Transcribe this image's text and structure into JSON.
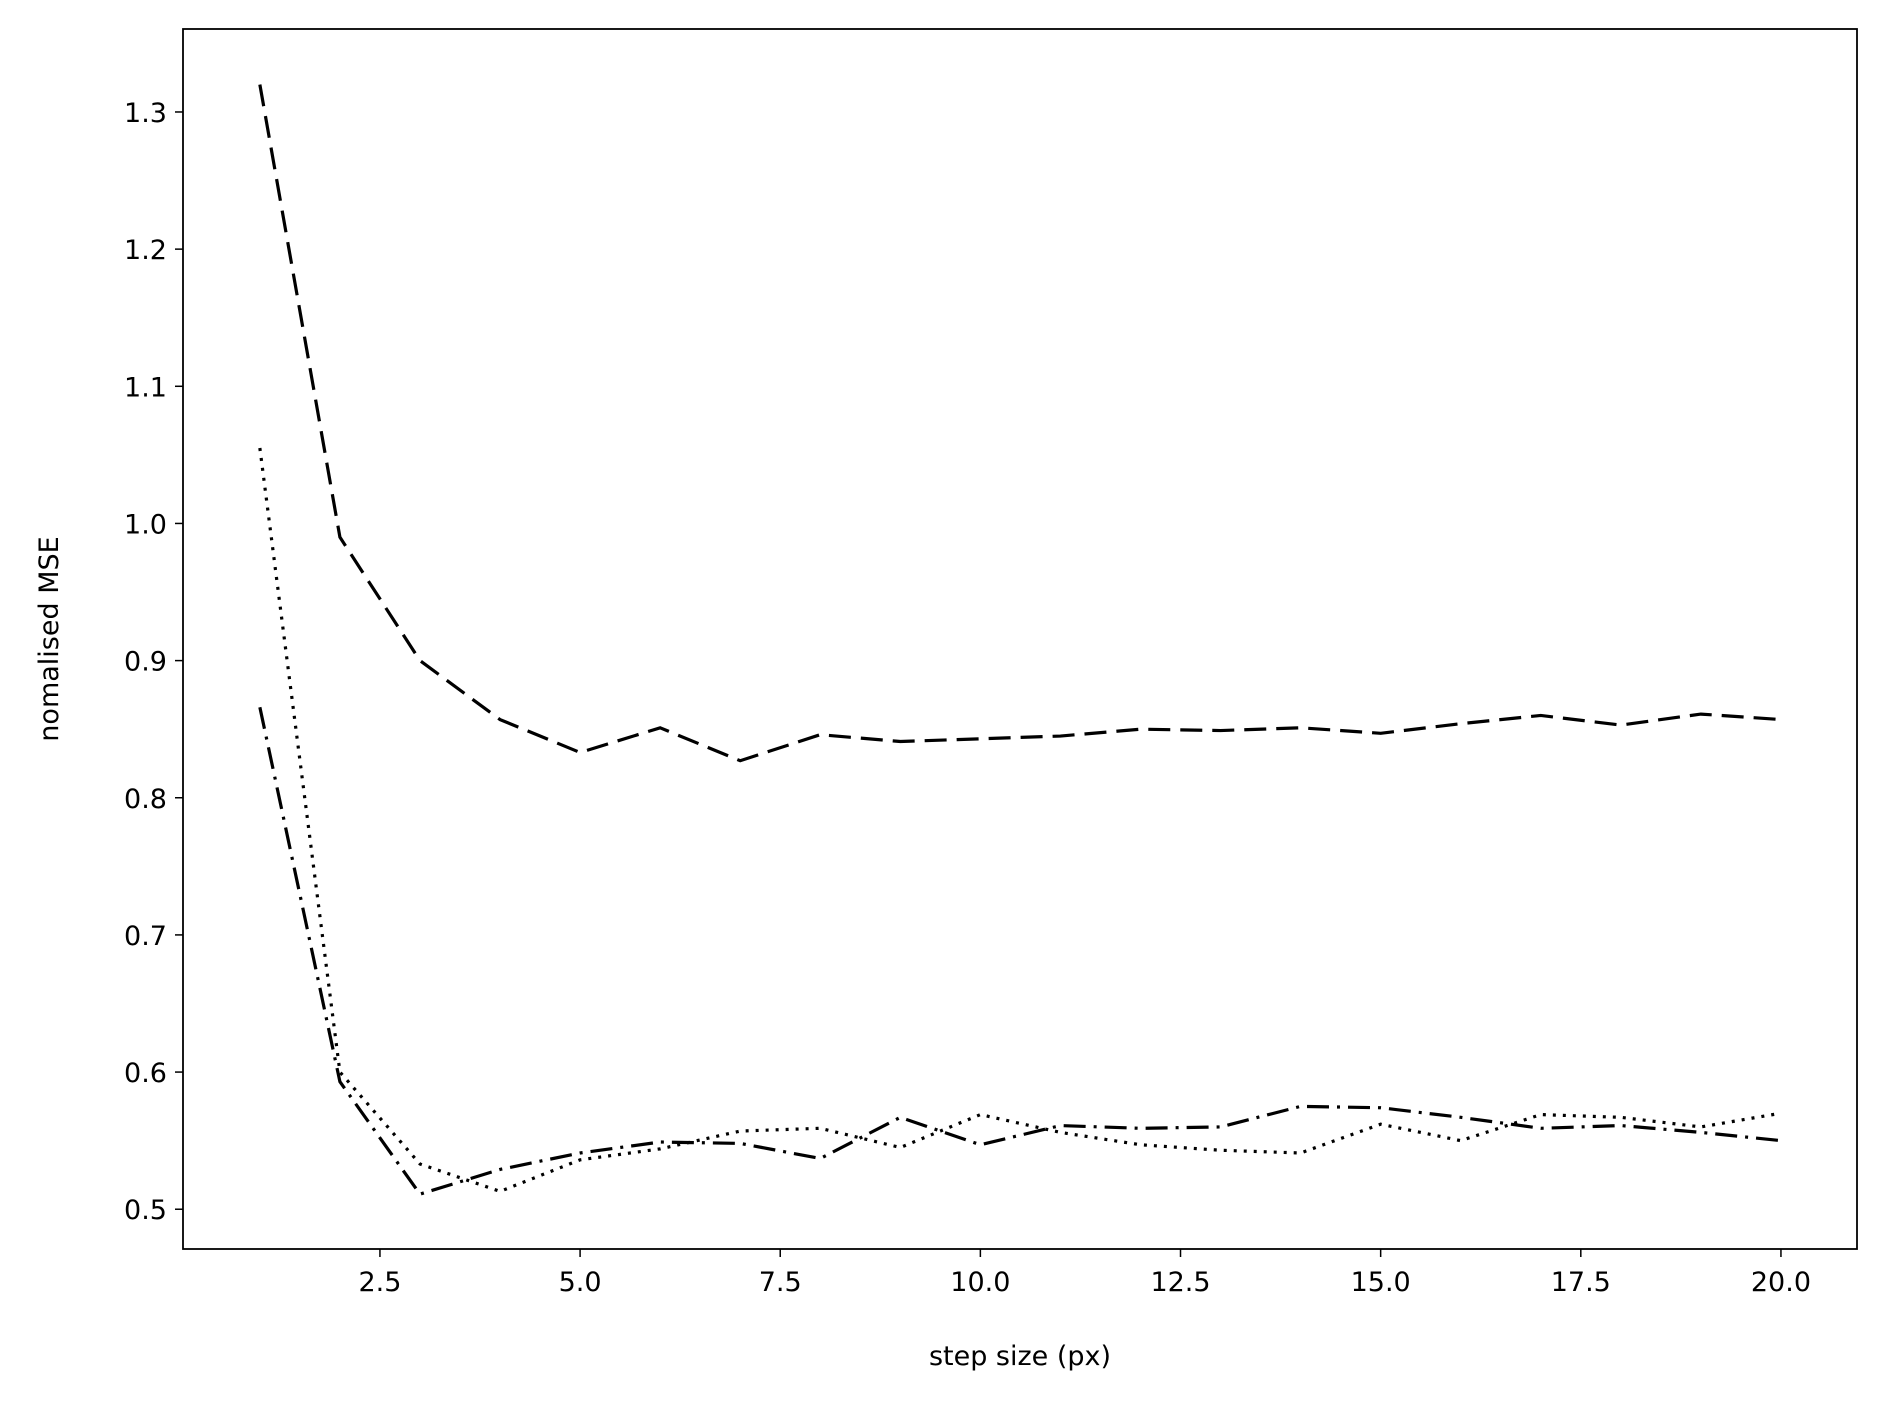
{
  "chart_data": {
    "type": "line",
    "x_label": "step size (px)",
    "y_label": "nomalised MSE",
    "x": [
      1,
      2,
      3,
      4,
      5,
      6,
      7,
      8,
      9,
      10,
      11,
      12,
      13,
      14,
      15,
      16,
      17,
      18,
      19,
      20
    ],
    "series": [
      {
        "color": "#000000",
        "linestyle": "dashed",
        "values": [
          1.32,
          0.99,
          0.9,
          0.857,
          0.833,
          0.851,
          0.827,
          0.846,
          0.841,
          0.843,
          0.845,
          0.85,
          0.849,
          0.851,
          0.847,
          0.854,
          0.86,
          0.853,
          0.861,
          0.857
        ]
      },
      {
        "color": "#000000",
        "linestyle": "dotted",
        "values": [
          1.055,
          0.6,
          0.533,
          0.513,
          0.536,
          0.544,
          0.557,
          0.559,
          0.545,
          0.569,
          0.556,
          0.547,
          0.543,
          0.541,
          0.562,
          0.55,
          0.569,
          0.567,
          0.56,
          0.57
        ]
      },
      {
        "color": "#000000",
        "linestyle": "dashdot",
        "values": [
          0.866,
          0.593,
          0.511,
          0.529,
          0.541,
          0.549,
          0.548,
          0.537,
          0.567,
          0.547,
          0.561,
          0.559,
          0.56,
          0.575,
          0.574,
          0.567,
          0.559,
          0.561,
          0.556,
          0.55
        ]
      }
    ],
    "xlim": [
      0.04,
      20.95
    ],
    "xticks": [
      2.5,
      {
        "value": 5,
        "label": "5.0"
      },
      7.5,
      {
        "value": 10,
        "label": "10.0"
      },
      12.5,
      {
        "value": 15,
        "label": "15.0"
      },
      17.5,
      {
        "value": 20,
        "label": "20.0"
      }
    ],
    "ylim": [
      0.471,
      1.3605
    ],
    "yticks": [
      0.5,
      0.6,
      0.7,
      0.8,
      0.9,
      {
        "value": 1,
        "label": "1.0"
      },
      1.1,
      1.2,
      1.3
    ],
    "grid": false
  }
}
